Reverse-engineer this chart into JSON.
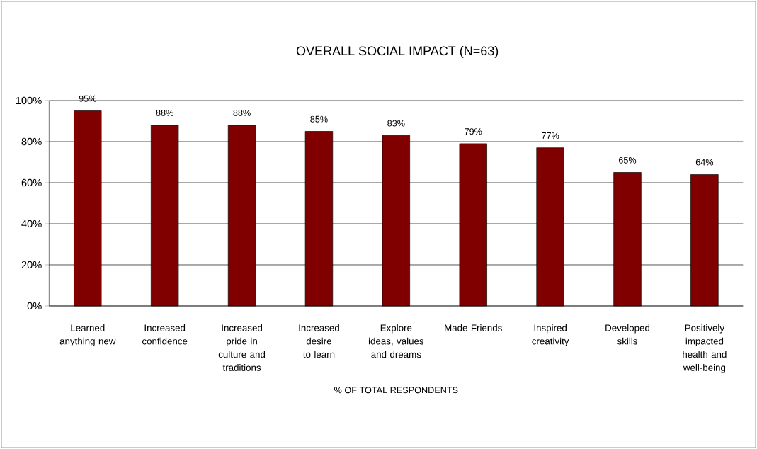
{
  "chart_data": {
    "type": "bar",
    "title": "OVERALL SOCIAL IMPACT (N=63)",
    "xlabel": "% OF TOTAL RESPONDENTS",
    "categories": [
      "Learned anything new",
      "Increased confidence",
      "Increased pride in culture and traditions",
      "Increased desire to learn",
      "Explore ideas, values and dreams",
      "Made Friends",
      "Inspired creativity",
      "Developed skills",
      "Positively impacted health and well-being"
    ],
    "values": [
      95,
      88,
      88,
      85,
      83,
      79,
      77,
      65,
      64
    ],
    "value_labels": [
      "95%",
      "88%",
      "88%",
      "85%",
      "83%",
      "79%",
      "77%",
      "65%",
      "64%"
    ],
    "color": "#800000",
    "ylim": [
      0,
      100
    ],
    "yticks": [
      {
        "value": 0,
        "label": "0%"
      },
      {
        "value": 20,
        "label": "20%"
      },
      {
        "value": 40,
        "label": "40%"
      },
      {
        "value": 60,
        "label": "60%"
      },
      {
        "value": 80,
        "label": "80%"
      },
      {
        "value": 100,
        "label": "100%"
      }
    ],
    "grid": "y"
  }
}
